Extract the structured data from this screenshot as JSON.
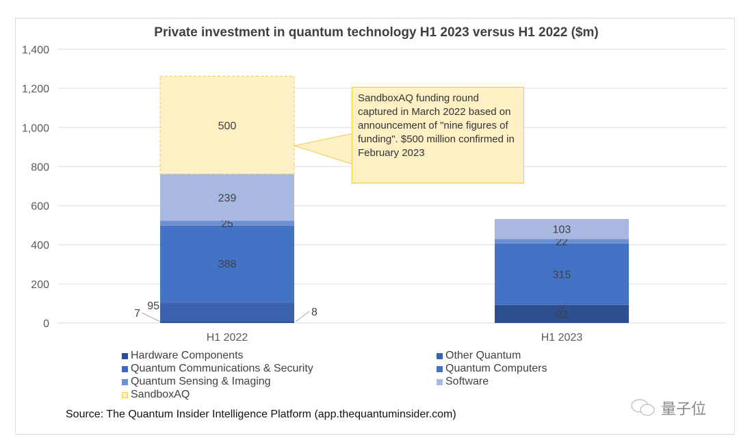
{
  "chart_data": {
    "type": "bar",
    "stacked": true,
    "title": "Private investment in quantum technology H1 2023 versus H1 2022 ($m)",
    "categories": [
      "H1 2022",
      "H1 2023"
    ],
    "ylim": [
      0,
      1400
    ],
    "yticks": [
      0,
      200,
      400,
      600,
      800,
      1000,
      1200,
      1400
    ],
    "ytick_labels": [
      "0",
      "200",
      "400",
      "600",
      "800",
      "1,000",
      "1,200",
      "1,400"
    ],
    "grid": true,
    "legend_position": "bottom",
    "series": [
      {
        "name": "Hardware Components",
        "values": [
          7,
          92
        ],
        "color": "#2e4f8f"
      },
      {
        "name": "Other Quantum",
        "values": [
          95,
          0
        ],
        "color": "#3b62ad"
      },
      {
        "name": "Quantum Communications & Security",
        "values": [
          8,
          0
        ],
        "color": "#4068b6"
      },
      {
        "name": "Quantum Computers",
        "values": [
          388,
          315
        ],
        "color": "#4472c4"
      },
      {
        "name": "Quantum Sensing & Imaging",
        "values": [
          25,
          22
        ],
        "color": "#6f8fd3"
      },
      {
        "name": "Software",
        "values": [
          239,
          103
        ],
        "color": "#a9b8e0"
      },
      {
        "name": "SandboxAQ",
        "values": [
          500,
          0
        ],
        "color": "#fdf0c4"
      }
    ],
    "data_labels": [
      [
        "7",
        "95",
        "8",
        "388",
        "25",
        "239",
        "500"
      ],
      [
        "92",
        "0",
        "",
        "315",
        "22",
        "103",
        ""
      ]
    ],
    "annotation": "SandboxAQ funding round captured in March 2022 based on announcement of \"nine figures of funding\". $500 million confirmed in February 2023"
  },
  "source": "Source: The Quantum Insider Intelligence Platform (app.thequantuminsider.com)",
  "watermark": "量子位"
}
